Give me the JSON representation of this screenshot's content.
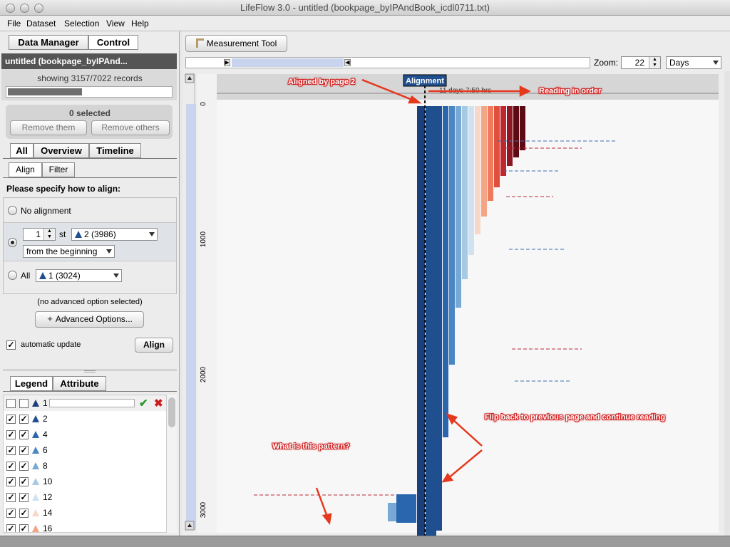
{
  "window": {
    "title": "LifeFlow 3.0 - untitled (bookpage_byIPAndBook_icdl0711.txt)"
  },
  "menu": [
    "File",
    "Dataset",
    "Selection",
    "View",
    "Help"
  ],
  "left": {
    "tabs": [
      "Data Manager",
      "Control"
    ],
    "dataset_title": "untitled (bookpage_byIPAnd...",
    "showing": "showing 3157/7022 records",
    "progress": 0.45,
    "selected": "0 selected",
    "remove_them": "Remove them",
    "remove_others": "Remove others",
    "view_tabs": [
      "All",
      "Overview",
      "Timeline"
    ],
    "sub_tabs": [
      "Align",
      "Filter"
    ],
    "align_prompt": "Please specify how to align:",
    "no_alignment": "No alignment",
    "nth_value": "1",
    "nth_suffix": "st",
    "nth_event": "2 (3986)",
    "from": "from the beginning",
    "all_label": "All",
    "all_event": "1 (3024)",
    "advanced_note": "(no advanced option selected)",
    "advanced_btn": "Advanced Options...",
    "auto_update": "automatic update",
    "align_btn": "Align",
    "legend_tabs": [
      "Legend",
      "Attribute"
    ],
    "legend_items": [
      {
        "label": "1",
        "color": "#1a3f7a"
      },
      {
        "label": "2",
        "color": "#1f4f8e"
      },
      {
        "label": "4",
        "color": "#2a66ad"
      },
      {
        "label": "6",
        "color": "#4a86c3"
      },
      {
        "label": "8",
        "color": "#78a9d4"
      },
      {
        "label": "10",
        "color": "#a6c9e4"
      },
      {
        "label": "12",
        "color": "#cfe2f1"
      },
      {
        "label": "14",
        "color": "#f7d7c7"
      },
      {
        "label": "16",
        "color": "#f4a585"
      }
    ]
  },
  "right": {
    "measurement": "Measurement Tool",
    "zoom_label": "Zoom:",
    "zoom_value": "22",
    "unit": "Days",
    "alignment_label": "Alignment",
    "time_text": "11 days 7:50 hrs",
    "ticks": [
      "0",
      "1000",
      "2000",
      "3000"
    ],
    "annotations": {
      "aligned": "Aligned by page 2",
      "reading": "Reading in order",
      "flip": "Flip back to previous page and continue reading",
      "pattern": "What is this pattern?"
    }
  }
}
